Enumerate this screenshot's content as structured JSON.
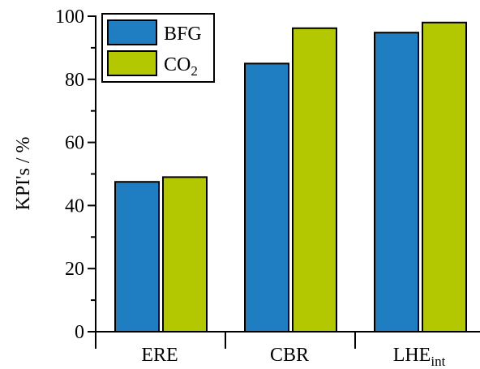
{
  "chart_data": {
    "type": "bar",
    "categories": [
      "ERE",
      "CBR",
      "LHE"
    ],
    "category_subscripts": [
      "",
      "",
      "int"
    ],
    "series": [
      {
        "name": "BFG",
        "name_subscript": "",
        "values": [
          47.5,
          85.0,
          94.8
        ],
        "color": "#1f7ec2"
      },
      {
        "name": "CO",
        "name_subscript": "2",
        "values": [
          49.0,
          96.2,
          98.0
        ],
        "color": "#b3c800"
      }
    ],
    "ylabel": "KPI's / %",
    "xlabel": "",
    "ylim": [
      0,
      100
    ],
    "yticks": [
      0,
      20,
      40,
      60,
      80,
      100
    ],
    "ytick_labels": [
      "0",
      "20",
      "40",
      "60",
      "80",
      "100"
    ],
    "grid": false,
    "legend_position": "top-left"
  }
}
